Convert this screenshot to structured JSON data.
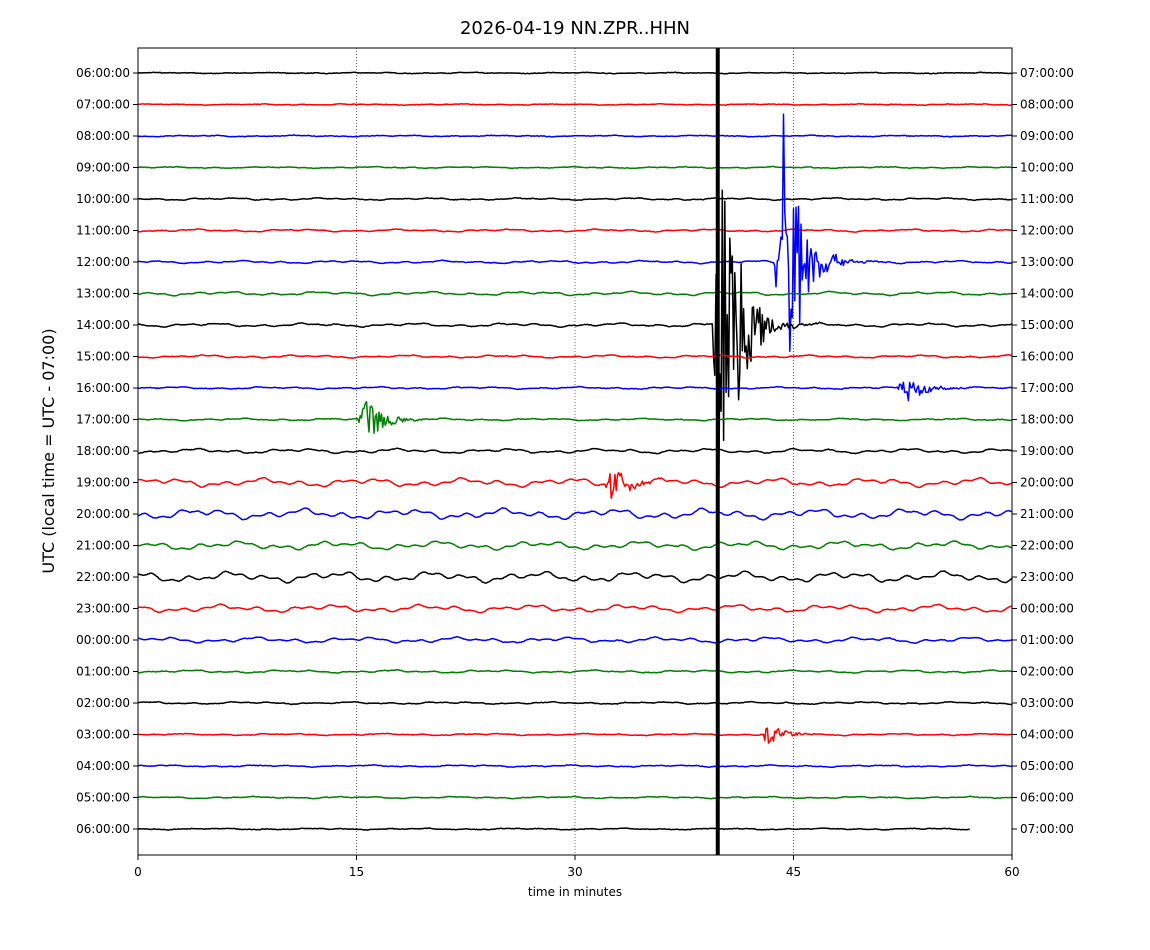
{
  "chart_data": {
    "type": "line",
    "title": "2026-04-19 NN.ZPR..HHN",
    "xlabel": "time in minutes",
    "ylabel": "UTC (local time = UTC - 07:00)",
    "xlim": [
      0,
      60
    ],
    "x_ticks": [
      0,
      15,
      30,
      45,
      60
    ],
    "grid": "vertical dotted lines at x ticks",
    "trace_colors": [
      "#000000",
      "#ff0000",
      "#0000ff",
      "#008000"
    ],
    "rows": [
      {
        "left": "06:00:00",
        "right": "07:00:00"
      },
      {
        "left": "07:00:00",
        "right": "08:00:00"
      },
      {
        "left": "08:00:00",
        "right": "09:00:00"
      },
      {
        "left": "09:00:00",
        "right": "10:00:00"
      },
      {
        "left": "10:00:00",
        "right": "11:00:00"
      },
      {
        "left": "11:00:00",
        "right": "12:00:00"
      },
      {
        "left": "12:00:00",
        "right": "13:00:00"
      },
      {
        "left": "13:00:00",
        "right": "14:00:00"
      },
      {
        "left": "14:00:00",
        "right": "15:00:00"
      },
      {
        "left": "15:00:00",
        "right": "16:00:00"
      },
      {
        "left": "16:00:00",
        "right": "17:00:00"
      },
      {
        "left": "17:00:00",
        "right": "18:00:00"
      },
      {
        "left": "18:00:00",
        "right": "19:00:00"
      },
      {
        "left": "19:00:00",
        "right": "20:00:00"
      },
      {
        "left": "20:00:00",
        "right": "21:00:00"
      },
      {
        "left": "21:00:00",
        "right": "22:00:00"
      },
      {
        "left": "22:00:00",
        "right": "23:00:00"
      },
      {
        "left": "23:00:00",
        "right": "00:00:00"
      },
      {
        "left": "00:00:00",
        "right": "01:00:00"
      },
      {
        "left": "01:00:00",
        "right": "02:00:00"
      },
      {
        "left": "02:00:00",
        "right": "03:00:00"
      },
      {
        "left": "03:00:00",
        "right": "04:00:00"
      },
      {
        "left": "04:00:00",
        "right": "05:00:00"
      },
      {
        "left": "05:00:00",
        "right": "06:00:00"
      },
      {
        "left": "06:00:00",
        "right": "07:00:00"
      }
    ],
    "events": [
      {
        "row": "14:00:00",
        "minute": 39.8,
        "amplitude": 9.0
      },
      {
        "row": "12:00:00",
        "minute": 44.0,
        "amplitude": 7.0
      },
      {
        "row": "16:00:00",
        "minute": 52.5,
        "amplitude": 0.6
      },
      {
        "row": "17:00:00",
        "minute": 15.4,
        "amplitude": 0.9
      },
      {
        "row": "19:00:00",
        "minute": 32.4,
        "amplitude": 0.6
      },
      {
        "row": "03:00:00",
        "minute": 43.0,
        "amplitude": 0.4
      }
    ]
  }
}
